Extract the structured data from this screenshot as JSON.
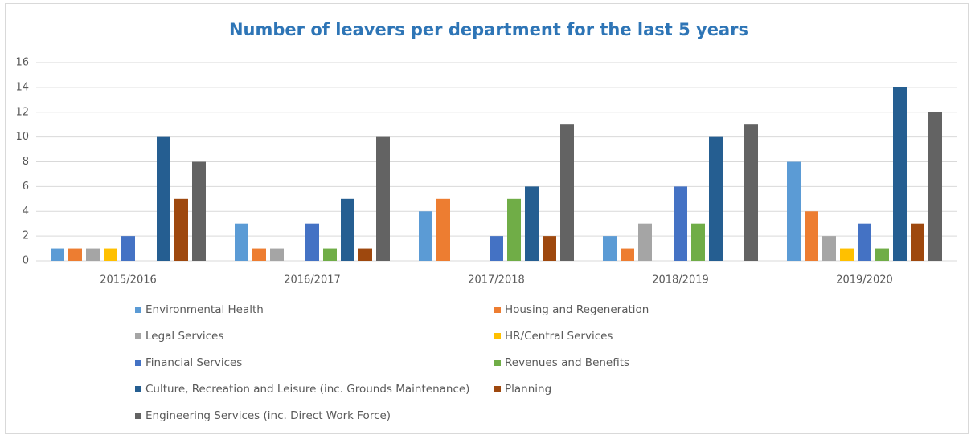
{
  "chart_data": {
    "type": "bar",
    "title": "Number of leavers per department for the last 5 years",
    "categories": [
      "2015/2016",
      "2016/2017",
      "2017/2018",
      "2018/2019",
      "2019/2020"
    ],
    "series": [
      {
        "name": "Environmental Health",
        "color": "#5b9bd5",
        "values": [
          1,
          3,
          4,
          2,
          8
        ]
      },
      {
        "name": "Housing and Regeneration",
        "color": "#ed7d31",
        "values": [
          1,
          1,
          5,
          1,
          4
        ]
      },
      {
        "name": "Legal Services",
        "color": "#a5a5a5",
        "values": [
          1,
          1,
          0,
          3,
          2
        ]
      },
      {
        "name": "HR/Central Services",
        "color": "#ffc000",
        "values": [
          1,
          0,
          0,
          0,
          1
        ]
      },
      {
        "name": "Financial Services",
        "color": "#4472c4",
        "values": [
          2,
          3,
          2,
          6,
          3
        ]
      },
      {
        "name": "Revenues and Benefits",
        "color": "#70ad47",
        "values": [
          0,
          1,
          5,
          3,
          1
        ]
      },
      {
        "name": "Culture, Recreation and Leisure (inc. Grounds Maintenance)",
        "color": "#255e91",
        "values": [
          10,
          5,
          6,
          10,
          14
        ]
      },
      {
        "name": "Planning",
        "color": "#9e480e",
        "values": [
          5,
          1,
          2,
          0,
          3
        ]
      },
      {
        "name": "Engineering Services (inc. Direct Work Force)",
        "color": "#636363",
        "values": [
          8,
          10,
          11,
          11,
          12
        ]
      }
    ],
    "ylim": [
      0,
      16
    ],
    "yticks": [
      0,
      2,
      4,
      6,
      8,
      10,
      12,
      14,
      16
    ],
    "grid": true,
    "legend": "bottom"
  }
}
